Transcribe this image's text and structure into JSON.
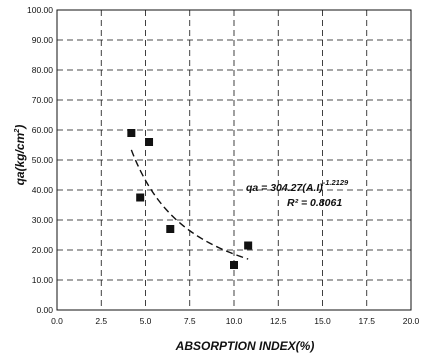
{
  "chart_data": {
    "type": "scatter",
    "xlabel": "ABSORPTION INDEX(%)",
    "ylabel_main": "qa(kg/cm",
    "ylabel_sup": "2",
    "ylabel_close": ")",
    "xlim": [
      0,
      20
    ],
    "ylim": [
      0,
      100
    ],
    "x_ticks": [
      "0.0",
      "2.5",
      "5.0",
      "7.5",
      "10.0",
      "12.5",
      "15.0",
      "17.5",
      "20.0"
    ],
    "y_ticks": [
      "0.00",
      "10.00",
      "20.00",
      "30.00",
      "40.00",
      "50.00",
      "60.00",
      "70.00",
      "80.00",
      "90.00",
      "100.00"
    ],
    "grid": true,
    "grid_style": "dashed",
    "points": [
      {
        "x": 4.2,
        "y": 59.0
      },
      {
        "x": 4.7,
        "y": 37.5
      },
      {
        "x": 5.2,
        "y": 56.0
      },
      {
        "x": 6.4,
        "y": 27.0
      },
      {
        "x": 10.0,
        "y": 15.0
      },
      {
        "x": 10.8,
        "y": 21.5
      }
    ],
    "fit": {
      "type": "power",
      "coefficient": 304.27,
      "exponent": -1.2129,
      "x_range": [
        4.2,
        10.8
      ],
      "equation_main": "qa = 304.27(A.I)",
      "equation_sup": "-1.2129",
      "r2_text": "R² = 0.8061"
    }
  }
}
